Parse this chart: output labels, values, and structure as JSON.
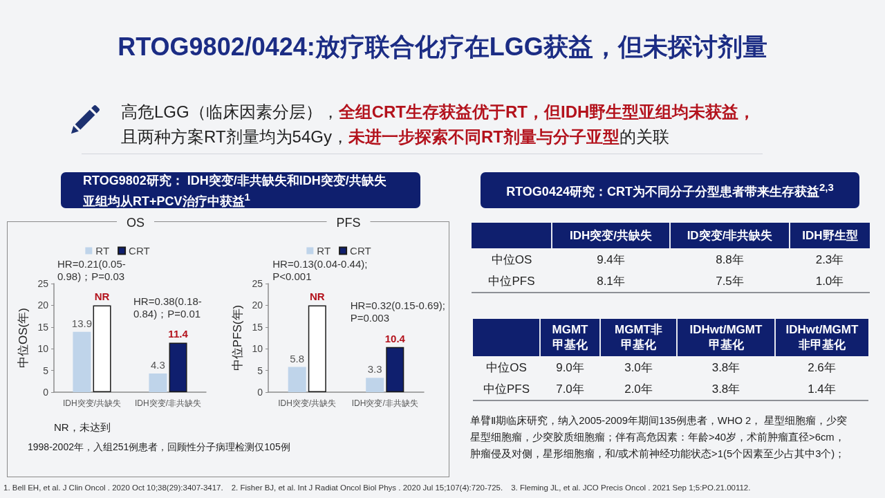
{
  "chart_data": [
    {
      "type": "other",
      "title": "RTOG9802/0424:放疗联合化疗在LGG获益，但未探讨剂量",
      "annotations": [
        "高危LGG（临床因素分层），",
        "全组CRT生存获益优于RT，但IDH野生型亚组均未获益，",
        "且两种方案RT剂量均为54Gy，",
        "未进一步探索不同RT剂量与分子亚型",
        "的关联"
      ]
    },
    {
      "type": "other",
      "title": "RTOG9802研究： IDH突变/非共缺失和IDH突变/共缺失亚组均从RT+PCV治疗中获益$^{1}$",
      "annotations": [
        "NR，未达到",
        "1998-2002年，入组251例患者，回顾性分子病理检测仅105例"
      ]
    },
    {
      "type": "bar",
      "title": "OS",
      "ylabel": "中位OS(年)",
      "categories": [
        "IDH突变/共缺失",
        "IDH突变/非共缺失"
      ],
      "series": [
        {
          "name": "RT",
          "color": "#bfd4ea",
          "values": [
            13.9,
            4.3
          ],
          "value_labels": [
            "13.9",
            "4.3"
          ]
        },
        {
          "name": "CRT",
          "color": "#0f1f6e",
          "colors": [
            "#ffffff",
            "#0f1f6e"
          ],
          "values": [
            20,
            11.4
          ],
          "value_labels": [
            "NR",
            "11.4"
          ]
        }
      ],
      "ylim": [
        0,
        25
      ],
      "yticks": [
        0,
        5,
        10,
        15,
        20,
        25
      ],
      "legend": "top",
      "annotations": [
        "HR=0.21(0.05-\n0.98)；P=0.03",
        "HR=0.38(0.18-\n0.84)；P=0.01"
      ]
    },
    {
      "type": "bar",
      "title": "PFS",
      "ylabel": "中位PFS(年)",
      "categories": [
        "IDH突变/共缺失",
        "IDH突变/非共缺失"
      ],
      "series": [
        {
          "name": "RT",
          "color": "#bfd4ea",
          "values": [
            5.8,
            3.3
          ],
          "value_labels": [
            "5.8",
            "3.3"
          ]
        },
        {
          "name": "CRT",
          "color": "#0f1f6e",
          "colors": [
            "#ffffff",
            "#0f1f6e"
          ],
          "values": [
            20,
            10.4
          ],
          "value_labels": [
            "NR",
            "10.4"
          ]
        }
      ],
      "ylim": [
        0,
        25
      ],
      "yticks": [
        0,
        5,
        10,
        15,
        20,
        25
      ],
      "legend": "top",
      "annotations": [
        "HR=0.13(0.04-0.44);\nP<0.001",
        "HR=0.32(0.15-0.69);\nP=0.003"
      ]
    },
    {
      "type": "other",
      "title": "RTOG0424研究：CRT为不同分子分型患者带来生存获益$^{2,3}$",
      "categories": [
        "IDH突变/共缺失",
        "ID突变/非共缺失",
        "IDH野生型"
      ],
      "y_categories": [
        "中位OS",
        "中位PFS"
      ],
      "cell_labels": [
        [
          "9.4年",
          "8.8年",
          "2.3年"
        ],
        [
          "8.1年",
          "7.5年",
          "1.0年"
        ]
      ]
    },
    {
      "type": "other",
      "categories": [
        "MGMT甲基化",
        "MGMT非甲基化",
        "IDHwt/MGMT甲基化",
        "IDHwt/MGMT非甲基化"
      ],
      "y_categories": [
        "中位OS",
        "中位PFS"
      ],
      "cell_labels": [
        [
          "9.0年",
          "3.0年",
          "3.8年",
          "2.6年"
        ],
        [
          "7.0年",
          "2.0年",
          "3.8年",
          "1.4年"
        ]
      ],
      "annotations": [
        "单臂Ⅱ期临床研究，纳入2005-2009年期间135例患者，WHO 2， 星型细胞瘤，少突星型细胞瘤，少突胶质细胞瘤；伴有高危因素：年龄>40岁，术前肿瘤直径>6cm，肿瘤侵及对侧，星形细胞瘤，和/或术前神经功能状态>1(5个因素至少占其中3个)；"
      ]
    },
    {
      "type": "other",
      "annotations": [
        "1. Bell EH, et al. J Clin Oncol . 2020 Oct 10;38(29):3407-3417.",
        "2. Fisher BJ, et al. Int J Radiat Oncol Biol Phys . 2020 Jul 15;107(4):720-725.",
        "3. Fleming JL, et al. JCO Precis Oncol . 2021 Sep 1;5:PO.21.00112."
      ]
    }
  ]
}
